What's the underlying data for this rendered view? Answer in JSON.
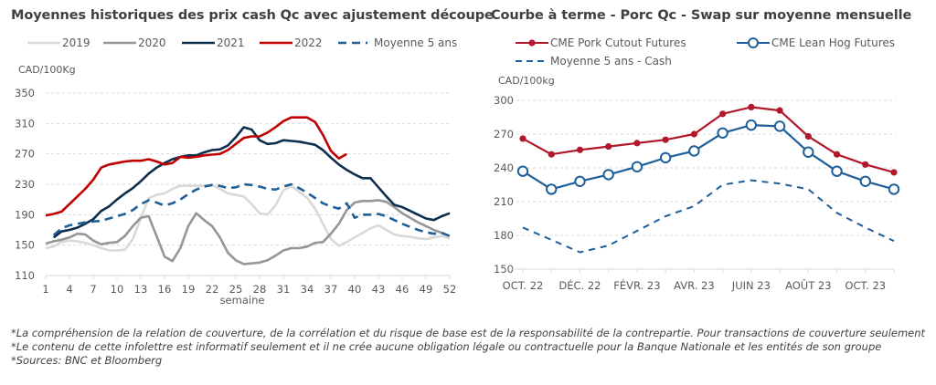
{
  "chart_data": [
    {
      "type": "line",
      "title": "Moyennes historiques des prix cash Qc avec ajustement découpe",
      "ylabel": "CAD/100Kg",
      "xlabel": "semaine",
      "ylim": [
        110,
        350
      ],
      "yticks": [
        110,
        150,
        190,
        230,
        270,
        310,
        350
      ],
      "xlim": [
        1,
        52
      ],
      "xticks": [
        1,
        4,
        7,
        10,
        13,
        16,
        19,
        22,
        25,
        28,
        31,
        34,
        37,
        40,
        43,
        46,
        49,
        52
      ],
      "grid": true,
      "legend": "top",
      "x": [
        1,
        2,
        3,
        4,
        5,
        6,
        7,
        8,
        9,
        10,
        11,
        12,
        13,
        14,
        15,
        16,
        17,
        18,
        19,
        20,
        21,
        22,
        23,
        24,
        25,
        26,
        27,
        28,
        29,
        30,
        31,
        32,
        33,
        34,
        35,
        36,
        37,
        38,
        39,
        40,
        41,
        42,
        43,
        44,
        45,
        46,
        47,
        48,
        49,
        50,
        51,
        52
      ],
      "series": [
        {
          "name": "2019",
          "color": "#d9d9d9",
          "style": "solid",
          "values": [
            146,
            148,
            154,
            156,
            155,
            153,
            150,
            146,
            143,
            143,
            144,
            158,
            185,
            212,
            216,
            218,
            224,
            228,
            228,
            228,
            228,
            229,
            224,
            218,
            216,
            214,
            204,
            192,
            190,
            202,
            222,
            228,
            220,
            212,
            198,
            178,
            158,
            149,
            154,
            160,
            166,
            172,
            176,
            170,
            164,
            162,
            161,
            159,
            158,
            160,
            162,
            159
          ]
        },
        {
          "name": "2020",
          "color": "#969696",
          "style": "solid",
          "values": [
            152,
            155,
            157,
            160,
            165,
            164,
            156,
            151,
            153,
            154,
            162,
            175,
            186,
            188,
            162,
            135,
            129,
            146,
            175,
            192,
            183,
            175,
            160,
            140,
            130,
            125,
            126,
            127,
            130,
            136,
            143,
            146,
            146,
            148,
            153,
            154,
            165,
            178,
            196,
            206,
            208,
            208,
            209,
            207,
            200,
            192,
            186,
            180,
            175,
            170,
            166,
            162
          ]
        },
        {
          "name": "2021",
          "color": "#0e2e4e",
          "style": "solid",
          "values": [
            null,
            160,
            168,
            170,
            173,
            178,
            184,
            195,
            201,
            210,
            218,
            225,
            234,
            244,
            252,
            258,
            263,
            266,
            268,
            268,
            272,
            275,
            276,
            281,
            292,
            305,
            302,
            288,
            283,
            284,
            288,
            287,
            286,
            284,
            282,
            275,
            265,
            256,
            249,
            243,
            238,
            238,
            226,
            214,
            203,
            200,
            195,
            190,
            185,
            183,
            188,
            192
          ]
        },
        {
          "name": "2022",
          "color": "#c00000",
          "style": "solid",
          "values": [
            189,
            191,
            194,
            204,
            214,
            224,
            236,
            252,
            256,
            258,
            260,
            261,
            261,
            263,
            260,
            256,
            258,
            266,
            265,
            266,
            268,
            269,
            270,
            275,
            283,
            291,
            293,
            293,
            298,
            305,
            313,
            318,
            318,
            318,
            312,
            295,
            274,
            264,
            270,
            null,
            null,
            null,
            null,
            null,
            null,
            null,
            null,
            null,
            null,
            null,
            null,
            null
          ]
        },
        {
          "name": "Moyenne 5 ans",
          "color": "#1f5f99",
          "style": "dashed",
          "values": [
            null,
            163,
            172,
            176,
            178,
            180,
            181,
            182,
            185,
            188,
            191,
            196,
            204,
            209,
            206,
            202,
            205,
            210,
            217,
            223,
            227,
            229,
            228,
            225,
            226,
            230,
            229,
            227,
            224,
            223,
            227,
            230,
            225,
            219,
            212,
            205,
            201,
            198,
            205,
            186,
            190,
            190,
            191,
            188,
            183,
            178,
            174,
            170,
            167,
            165,
            166,
            162
          ]
        }
      ]
    },
    {
      "type": "line",
      "title": "Courbe à terme - Porc Qc - Swap sur moyenne mensuelle",
      "ylabel": "CAD/100kg",
      "ylim": [
        150,
        300
      ],
      "yticks": [
        150,
        180,
        210,
        240,
        270,
        300
      ],
      "grid": true,
      "legend": "top",
      "categories": [
        "OCT. 22",
        "NOV. 22",
        "DÉC. 22",
        "JANV. 23",
        "FÉVR. 23",
        "MARS 23",
        "AVR. 23",
        "MAI 23",
        "JUIN 23",
        "JUIL. 23",
        "AOÛT 23",
        "SEPT. 23",
        "OCT. 23",
        "NOV. 23"
      ],
      "xtick_labels": [
        "OCT. 22",
        "DÉC. 22",
        "FÉVR. 23",
        "AVR. 23",
        "JUIN 23",
        "AOÛT 23",
        "OCT. 23"
      ],
      "series": [
        {
          "name": "CME Pork Cutout Futures",
          "color": "#b2182b",
          "marker": "filled-dot",
          "values": [
            266,
            252,
            256,
            259,
            262,
            265,
            270,
            288,
            294,
            291,
            268,
            252,
            243,
            236
          ]
        },
        {
          "name": "CME Lean Hog Futures",
          "color": "#1f5f99",
          "marker": "open-circle",
          "values": [
            237,
            221,
            228,
            234,
            241,
            249,
            255,
            271,
            278,
            277,
            254,
            237,
            228,
            221
          ]
        },
        {
          "name": "Moyenne 5 ans - Cash",
          "color": "#1f5f99",
          "marker": "none",
          "style": "dashed",
          "values": [
            187,
            176,
            165,
            171,
            184,
            197,
            206,
            225,
            229,
            226,
            221,
            200,
            187,
            175
          ]
        }
      ]
    }
  ],
  "footnotes": [
    "*La compréhension de la relation de couverture, de la corrélation et du risque de base est de la responsabilité de la contrepartie. Pour transactions de couverture seulement",
    "*Le contenu de cette infolettre est informatif seulement et il ne crée aucune obligation légale ou contractuelle pour la Banque Nationale et les entités de son groupe",
    "*Sources: BNC et Bloomberg"
  ]
}
